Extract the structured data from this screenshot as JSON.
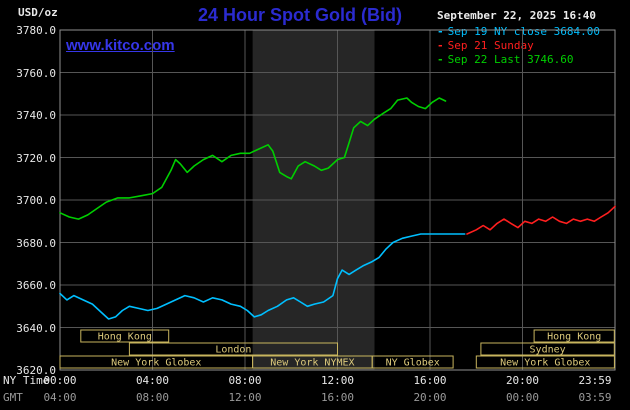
{
  "header": {
    "unit_label": "USD/oz",
    "title": "24 Hour Spot Gold (Bid)",
    "date": "September 22, 2025 16:40",
    "watermark": "www.kitco.com"
  },
  "legend": [
    {
      "label": "Sep 19 NY close 3684.00",
      "color": "#00bfff"
    },
    {
      "label": "Sep 21 Sunday",
      "color": "#ff1f1f"
    },
    {
      "label": "Sep 22 Last 3746.60",
      "color": "#00cf00"
    }
  ],
  "axes": {
    "y_ticks": [
      "3780.0",
      "3760.0",
      "3740.0",
      "3720.0",
      "3700.0",
      "3680.0",
      "3660.0",
      "3640.0",
      "3620.0"
    ],
    "x_ny": {
      "label": "NY Time",
      "ticks": [
        "00:00",
        "04:00",
        "08:00",
        "12:00",
        "16:00",
        "20:00",
        "23:59"
      ]
    },
    "x_gmt": {
      "label": "GMT",
      "ticks": [
        "04:00",
        "08:00",
        "12:00",
        "16:00",
        "20:00",
        "00:00",
        "03:59"
      ]
    }
  },
  "chart_data": {
    "type": "line",
    "title": "24 Hour Spot Gold (Bid)",
    "xlabel": "NY Time (hours 0-24)",
    "ylabel": "USD/oz",
    "ylim": [
      3620,
      3780
    ],
    "y_gridline_step": 20,
    "x_gridline_hours": [
      0,
      4,
      8,
      12,
      16,
      20,
      24
    ],
    "nymex_band_hours": [
      8.33,
      13.6
    ],
    "grid": true,
    "legend_position": "top-right",
    "series": [
      {
        "name": "Sep 19 NY close",
        "color": "#00bfff",
        "close_value": 3684.0,
        "points": [
          [
            0,
            3656
          ],
          [
            0.3,
            3653
          ],
          [
            0.6,
            3655
          ],
          [
            1,
            3653
          ],
          [
            1.4,
            3651
          ],
          [
            1.8,
            3647
          ],
          [
            2.1,
            3644
          ],
          [
            2.4,
            3645
          ],
          [
            2.7,
            3648
          ],
          [
            3,
            3650
          ],
          [
            3.4,
            3649
          ],
          [
            3.8,
            3648
          ],
          [
            4.2,
            3649
          ],
          [
            4.6,
            3651
          ],
          [
            5,
            3653
          ],
          [
            5.4,
            3655
          ],
          [
            5.8,
            3654
          ],
          [
            6.2,
            3652
          ],
          [
            6.6,
            3654
          ],
          [
            7,
            3653
          ],
          [
            7.4,
            3651
          ],
          [
            7.8,
            3650
          ],
          [
            8.1,
            3648
          ],
          [
            8.4,
            3645
          ],
          [
            8.7,
            3646
          ],
          [
            9,
            3648
          ],
          [
            9.4,
            3650
          ],
          [
            9.8,
            3653
          ],
          [
            10.1,
            3654
          ],
          [
            10.4,
            3652
          ],
          [
            10.7,
            3650
          ],
          [
            11,
            3651
          ],
          [
            11.4,
            3652
          ],
          [
            11.8,
            3655
          ],
          [
            12,
            3663
          ],
          [
            12.2,
            3667
          ],
          [
            12.5,
            3665
          ],
          [
            12.8,
            3667
          ],
          [
            13.1,
            3669
          ],
          [
            13.5,
            3671
          ],
          [
            13.8,
            3673
          ],
          [
            14.1,
            3677
          ],
          [
            14.4,
            3680
          ],
          [
            14.8,
            3682
          ],
          [
            15.2,
            3683
          ],
          [
            15.6,
            3684
          ],
          [
            16,
            3684
          ],
          [
            16.5,
            3684
          ],
          [
            17,
            3684
          ],
          [
            17.5,
            3684
          ]
        ]
      },
      {
        "name": "Sep 21 Sunday",
        "color": "#ff1f1f",
        "points": [
          [
            17.6,
            3684
          ],
          [
            18,
            3686
          ],
          [
            18.3,
            3688
          ],
          [
            18.6,
            3686
          ],
          [
            18.9,
            3689
          ],
          [
            19.2,
            3691
          ],
          [
            19.5,
            3689
          ],
          [
            19.8,
            3687
          ],
          [
            20.1,
            3690
          ],
          [
            20.4,
            3689
          ],
          [
            20.7,
            3691
          ],
          [
            21,
            3690
          ],
          [
            21.3,
            3692
          ],
          [
            21.6,
            3690
          ],
          [
            21.9,
            3689
          ],
          [
            22.2,
            3691
          ],
          [
            22.5,
            3690
          ],
          [
            22.8,
            3691
          ],
          [
            23.1,
            3690
          ],
          [
            23.4,
            3692
          ],
          [
            23.7,
            3694
          ],
          [
            24,
            3697
          ]
        ]
      },
      {
        "name": "Sep 22 Last",
        "color": "#00cf00",
        "last_value": 3746.6,
        "points": [
          [
            0,
            3694
          ],
          [
            0.4,
            3692
          ],
          [
            0.8,
            3691
          ],
          [
            1.2,
            3693
          ],
          [
            1.6,
            3696
          ],
          [
            2,
            3699
          ],
          [
            2.5,
            3701
          ],
          [
            3,
            3701
          ],
          [
            3.5,
            3702
          ],
          [
            4,
            3703
          ],
          [
            4.4,
            3706
          ],
          [
            4.8,
            3714
          ],
          [
            5,
            3719
          ],
          [
            5.2,
            3717
          ],
          [
            5.5,
            3713
          ],
          [
            5.8,
            3716
          ],
          [
            6.2,
            3719
          ],
          [
            6.6,
            3721
          ],
          [
            7,
            3718
          ],
          [
            7.4,
            3721
          ],
          [
            7.8,
            3722
          ],
          [
            8.2,
            3722
          ],
          [
            8.6,
            3724
          ],
          [
            9,
            3726
          ],
          [
            9.2,
            3723
          ],
          [
            9.5,
            3713
          ],
          [
            9.8,
            3711
          ],
          [
            10,
            3710
          ],
          [
            10.3,
            3716
          ],
          [
            10.6,
            3718
          ],
          [
            11,
            3716
          ],
          [
            11.3,
            3714
          ],
          [
            11.6,
            3715
          ],
          [
            12,
            3719
          ],
          [
            12.3,
            3720
          ],
          [
            12.5,
            3727
          ],
          [
            12.7,
            3734
          ],
          [
            13,
            3737
          ],
          [
            13.3,
            3735
          ],
          [
            13.6,
            3738
          ],
          [
            14,
            3741
          ],
          [
            14.3,
            3743
          ],
          [
            14.6,
            3747
          ],
          [
            15,
            3748
          ],
          [
            15.2,
            3746
          ],
          [
            15.5,
            3744
          ],
          [
            15.8,
            3743
          ],
          [
            16.1,
            3746
          ],
          [
            16.4,
            3748
          ],
          [
            16.67,
            3746.6
          ]
        ]
      }
    ],
    "sessions": [
      {
        "row": 1,
        "start": 0.9,
        "end": 4.7,
        "label": "Hong Kong"
      },
      {
        "row": 2,
        "start": 3.0,
        "end": 12.0,
        "label": "London"
      },
      {
        "row": 3,
        "start": 0.0,
        "end": 8.33,
        "label": "New York Globex"
      },
      {
        "row": 3,
        "start": 8.33,
        "end": 13.5,
        "label": "New York NYMEX"
      },
      {
        "row": 3,
        "start": 13.5,
        "end": 17.0,
        "label": "NY Globex"
      },
      {
        "row": 1,
        "start": 20.5,
        "end": 23.97,
        "label": "Hong Kong"
      },
      {
        "row": 2,
        "start": 18.2,
        "end": 23.97,
        "label": "Sydney"
      },
      {
        "row": 3,
        "start": 18.0,
        "end": 23.97,
        "label": "New York Globex"
      }
    ],
    "colors": {
      "background": "#000000",
      "grid": "#565656",
      "border": "#8f8f8f",
      "nymex_band": "#262626",
      "session_border": "#c8b55e",
      "session_text": "#dcc97b",
      "axis_text": "#e8e8e8",
      "gmt_text": "#9a9a9a",
      "title_blue": "#2b2bd0"
    }
  }
}
